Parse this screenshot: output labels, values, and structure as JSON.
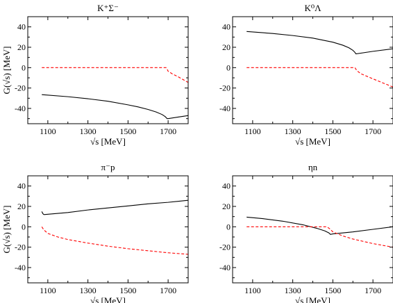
{
  "chart_data": [
    {
      "type": "line",
      "title": "K⁺Σ⁻",
      "xlabel": "√s  [MeV]",
      "ylabel": "G(√s)  [MeV]",
      "xlim": [
        1000,
        1800
      ],
      "ylim": [
        -55,
        50
      ],
      "xticks": [
        1100,
        1300,
        1500,
        1700
      ],
      "yticks": [
        40,
        20,
        0,
        -20,
        -40
      ],
      "series": [
        {
          "style": "solid",
          "color": "#000000",
          "x": [
            1070,
            1200,
            1300,
            1400,
            1500,
            1550,
            1600,
            1640,
            1670,
            1685,
            1695,
            1700,
            1750,
            1800
          ],
          "y": [
            -26.5,
            -28.5,
            -30.5,
            -33,
            -36.5,
            -38.5,
            -41,
            -43.5,
            -46,
            -48,
            -50,
            -50,
            -48.5,
            -47
          ]
        },
        {
          "style": "dashed",
          "color": "#ff0000",
          "x": [
            1070,
            1200,
            1400,
            1600,
            1690,
            1695,
            1700,
            1720,
            1750,
            1800
          ],
          "y": [
            0,
            0,
            0,
            0,
            0,
            -1.5,
            -3.5,
            -6,
            -9,
            -14.5
          ]
        }
      ]
    },
    {
      "type": "line",
      "title": "K⁰Λ",
      "xlabel": "√s  [MeV]",
      "ylabel": "",
      "xlim": [
        1000,
        1800
      ],
      "ylim": [
        -55,
        50
      ],
      "xticks": [
        1100,
        1300,
        1500,
        1700
      ],
      "yticks": [
        40,
        20,
        0,
        -20,
        -40
      ],
      "series": [
        {
          "style": "solid",
          "color": "#000000",
          "x": [
            1070,
            1200,
            1300,
            1400,
            1500,
            1550,
            1580,
            1600,
            1610,
            1615,
            1700,
            1800
          ],
          "y": [
            35.5,
            33.5,
            31.5,
            29,
            25,
            22,
            19.5,
            17,
            15,
            13.5,
            16,
            18.5
          ]
        },
        {
          "style": "dashed",
          "color": "#ff0000",
          "x": [
            1070,
            1300,
            1500,
            1610,
            1620,
            1640,
            1700,
            1750,
            1800
          ],
          "y": [
            0,
            0,
            0,
            0,
            -3,
            -6,
            -11,
            -15,
            -19
          ]
        }
      ]
    },
    {
      "type": "line",
      "title": "π⁻p",
      "xlabel": "√s  [MeV]",
      "ylabel": "G(√s)  [MeV]",
      "xlim": [
        1000,
        1800
      ],
      "ylim": [
        -55,
        50
      ],
      "xticks": [
        1100,
        1300,
        1500,
        1700
      ],
      "yticks": [
        40,
        20,
        0,
        -20,
        -40
      ],
      "series": [
        {
          "style": "solid",
          "color": "#000000",
          "x": [
            1070,
            1075,
            1080,
            1085,
            1200,
            1300,
            1400,
            1500,
            1600,
            1700,
            1800
          ],
          "y": [
            15,
            13,
            12,
            12,
            14,
            16.5,
            18.5,
            20.5,
            22.5,
            24,
            26
          ]
        },
        {
          "style": "dashed",
          "color": "#ff0000",
          "x": [
            1070,
            1080,
            1100,
            1150,
            1200,
            1300,
            1400,
            1500,
            1600,
            1700,
            1800
          ],
          "y": [
            0,
            -3,
            -6.5,
            -10,
            -12.5,
            -16,
            -19,
            -21.5,
            -23.5,
            -25.5,
            -27
          ]
        }
      ]
    },
    {
      "type": "line",
      "title": "ηn",
      "xlabel": "√s  [MeV]",
      "ylabel": "",
      "xlim": [
        1000,
        1800
      ],
      "ylim": [
        -55,
        50
      ],
      "xticks": [
        1100,
        1300,
        1500,
        1700
      ],
      "yticks": [
        40,
        20,
        0,
        -20,
        -40
      ],
      "series": [
        {
          "style": "solid",
          "color": "#000000",
          "x": [
            1070,
            1150,
            1250,
            1350,
            1420,
            1460,
            1480,
            1488,
            1500,
            1600,
            1700,
            1800
          ],
          "y": [
            9.5,
            8,
            5.5,
            2,
            -1.5,
            -4,
            -6,
            -7.5,
            -7,
            -5,
            -2.5,
            0
          ]
        },
        {
          "style": "dashed",
          "color": "#ff0000",
          "x": [
            1070,
            1300,
            1470,
            1485,
            1500,
            1550,
            1600,
            1700,
            1800
          ],
          "y": [
            0,
            0,
            0,
            -2,
            -5,
            -9,
            -12,
            -16.5,
            -20
          ]
        }
      ]
    }
  ]
}
